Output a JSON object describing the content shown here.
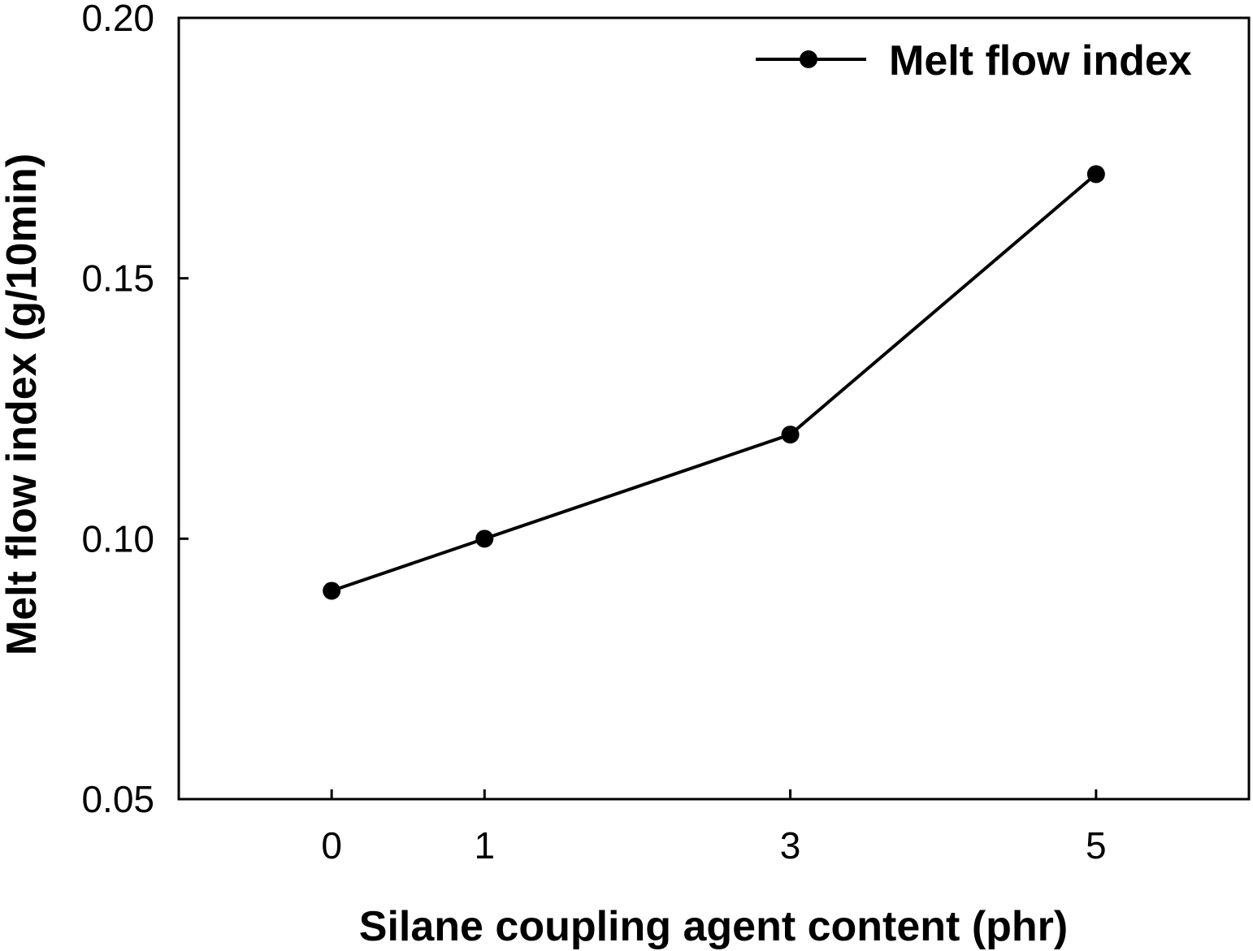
{
  "chart_data": {
    "type": "line",
    "xlabel": "Silane coupling agent content (phr)",
    "ylabel": "Melt flow index (g/10min)",
    "xlim": [
      -1,
      6
    ],
    "ylim": [
      0.05,
      0.2
    ],
    "x_ticks": [
      0,
      1,
      3,
      5
    ],
    "x_tick_labels": [
      "0",
      "1",
      "3",
      "5"
    ],
    "y_ticks": [
      0.05,
      0.1,
      0.15,
      0.2
    ],
    "y_tick_labels": [
      "0.05",
      "0.10",
      "0.15",
      "0.20"
    ],
    "grid": false,
    "legend_position": "top-right",
    "series": [
      {
        "name": "Melt flow index",
        "color": "#000000",
        "marker": "filled-circle",
        "x": [
          0,
          1,
          3,
          5
        ],
        "y": [
          0.09,
          0.1,
          0.12,
          0.17
        ]
      }
    ]
  }
}
